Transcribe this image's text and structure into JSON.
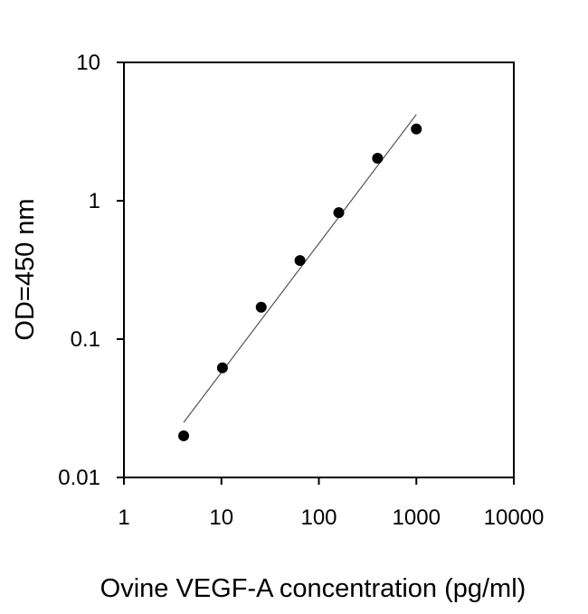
{
  "chart_data": {
    "type": "scatter",
    "title": "",
    "xlabel": "Ovine VEGF-A concentration (pg/ml)",
    "ylabel": "OD=450 nm",
    "x_scale": "log",
    "y_scale": "log",
    "xlim": [
      1,
      10000
    ],
    "ylim": [
      0.01,
      10
    ],
    "x_ticks": [
      "1",
      "10",
      "100",
      "1000",
      "10000"
    ],
    "y_ticks": [
      "0.01",
      "0.1",
      "1",
      "10"
    ],
    "grid": false,
    "points": {
      "x": [
        4.1,
        10.24,
        25.6,
        64,
        160,
        400,
        1000
      ],
      "y": [
        0.02,
        0.062,
        0.17,
        0.37,
        0.82,
        2.03,
        3.3
      ]
    },
    "fit_line": {
      "x": [
        4.1,
        1000
      ],
      "y": [
        0.025,
        4.2
      ]
    },
    "colors": {
      "points": "#000000",
      "fit_line": "#555555",
      "axes": "#000000"
    }
  }
}
